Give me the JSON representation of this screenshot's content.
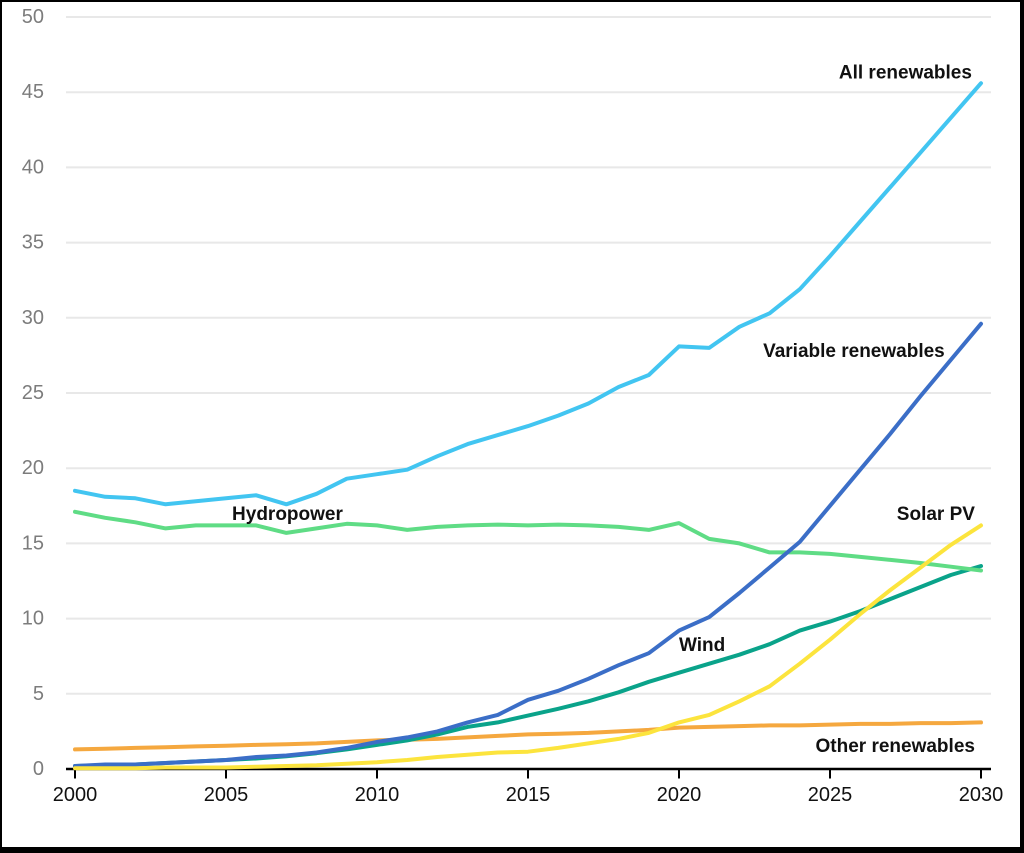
{
  "figure": {
    "background": "#ffffff",
    "frame_color": "#000000"
  },
  "chart_data": {
    "type": "line",
    "title": "",
    "xlabel": "",
    "ylabel": "",
    "xlim": [
      2000,
      2030
    ],
    "ylim": [
      0,
      50
    ],
    "grid": "horizontal",
    "legend": "inline-labels",
    "xticks": [
      2000,
      2005,
      2010,
      2015,
      2020,
      2025,
      2030
    ],
    "yticks": [
      0,
      5,
      10,
      15,
      20,
      25,
      30,
      35,
      40,
      45,
      50
    ],
    "axis_style": {
      "grid_color": "#e8e8e8",
      "axis_line_color": "#000000",
      "y_tick_label_color": "#7c7c7c",
      "x_tick_label_color": "#111111",
      "tick_label_font_px": 20
    },
    "x": [
      2000,
      2001,
      2002,
      2003,
      2004,
      2005,
      2006,
      2007,
      2008,
      2009,
      2010,
      2011,
      2012,
      2013,
      2014,
      2015,
      2016,
      2017,
      2018,
      2019,
      2020,
      2021,
      2022,
      2023,
      2024,
      2025,
      2026,
      2027,
      2028,
      2029,
      2030
    ],
    "series": [
      {
        "id": "all-renewables",
        "name": "All renewables",
        "color": "#42C5F1",
        "values": [
          18.5,
          18.1,
          18.0,
          17.6,
          17.8,
          18.0,
          18.2,
          17.6,
          18.3,
          19.3,
          19.6,
          19.9,
          20.8,
          21.6,
          22.2,
          22.8,
          23.5,
          24.3,
          25.4,
          26.2,
          28.1,
          28.0,
          29.4,
          30.3,
          31.9,
          34.1,
          36.4,
          38.7,
          41.0,
          43.3,
          45.6
        ]
      },
      {
        "id": "variable-renewables",
        "name": "Variable renewables",
        "color": "#3B6EC7",
        "values": [
          0.2,
          0.3,
          0.3,
          0.4,
          0.5,
          0.6,
          0.8,
          0.9,
          1.1,
          1.4,
          1.8,
          2.1,
          2.5,
          3.1,
          3.6,
          4.6,
          5.2,
          6.0,
          6.9,
          7.7,
          9.2,
          10.1,
          11.7,
          13.4,
          15.1,
          17.5,
          19.9,
          22.3,
          24.8,
          27.2,
          29.6
        ]
      },
      {
        "id": "hydropower",
        "name": "Hydropower",
        "color": "#5FDC85",
        "values": [
          17.1,
          16.7,
          16.4,
          16.0,
          16.2,
          16.2,
          16.2,
          15.7,
          16.0,
          16.3,
          16.2,
          15.9,
          16.1,
          16.2,
          16.25,
          16.2,
          16.25,
          16.2,
          16.1,
          15.9,
          16.35,
          15.3,
          15.0,
          14.4,
          14.4,
          14.3,
          14.1,
          13.9,
          13.7,
          13.45,
          13.2
        ]
      },
      {
        "id": "wind",
        "name": "Wind",
        "color": "#0AA38A",
        "values": [
          0.2,
          0.25,
          0.3,
          0.4,
          0.5,
          0.6,
          0.7,
          0.85,
          1.05,
          1.3,
          1.6,
          1.9,
          2.3,
          2.8,
          3.1,
          3.55,
          4.0,
          4.5,
          5.1,
          5.8,
          6.4,
          7.0,
          7.6,
          8.3,
          9.2,
          9.8,
          10.5,
          11.3,
          12.1,
          12.9,
          13.5
        ]
      },
      {
        "id": "solar-pv",
        "name": "Solar PV",
        "color": "#FCE43D",
        "values": [
          0.05,
          0.05,
          0.05,
          0.1,
          0.1,
          0.1,
          0.15,
          0.2,
          0.25,
          0.35,
          0.45,
          0.6,
          0.8,
          0.95,
          1.1,
          1.15,
          1.4,
          1.7,
          2.0,
          2.4,
          3.1,
          3.6,
          4.5,
          5.5,
          7.0,
          8.6,
          10.3,
          11.9,
          13.4,
          14.9,
          16.2
        ]
      },
      {
        "id": "other-renewables",
        "name": "Other renewables",
        "color": "#F5A83F",
        "values": [
          1.3,
          1.35,
          1.4,
          1.45,
          1.5,
          1.55,
          1.6,
          1.65,
          1.7,
          1.8,
          1.9,
          1.95,
          2.0,
          2.1,
          2.2,
          2.3,
          2.35,
          2.4,
          2.5,
          2.6,
          2.75,
          2.8,
          2.85,
          2.9,
          2.9,
          2.95,
          3.0,
          3.0,
          3.05,
          3.05,
          3.1
        ]
      }
    ],
    "annotations": [
      {
        "series": "all-renewables",
        "text": "All renewables",
        "anchor": "end",
        "year": 2029.7,
        "value": 45.9
      },
      {
        "series": "variable-renewables",
        "text": "Variable renewables",
        "anchor": "end",
        "year": 2028.8,
        "value": 27.4
      },
      {
        "series": "hydropower",
        "text": "Hydropower",
        "anchor": "start",
        "year": 2005.2,
        "value": 16.55
      },
      {
        "series": "wind",
        "text": "Wind",
        "anchor": "start",
        "year": 2020.0,
        "value": 7.85
      },
      {
        "series": "solar-pv",
        "text": "Solar PV",
        "anchor": "end",
        "year": 2029.8,
        "value": 16.55
      },
      {
        "series": "other-renewables",
        "text": "Other renewables",
        "anchor": "end",
        "year": 2029.8,
        "value": 1.13
      }
    ],
    "annotation_style": {
      "font_px": 19,
      "bold": true,
      "color": "#111111"
    }
  }
}
